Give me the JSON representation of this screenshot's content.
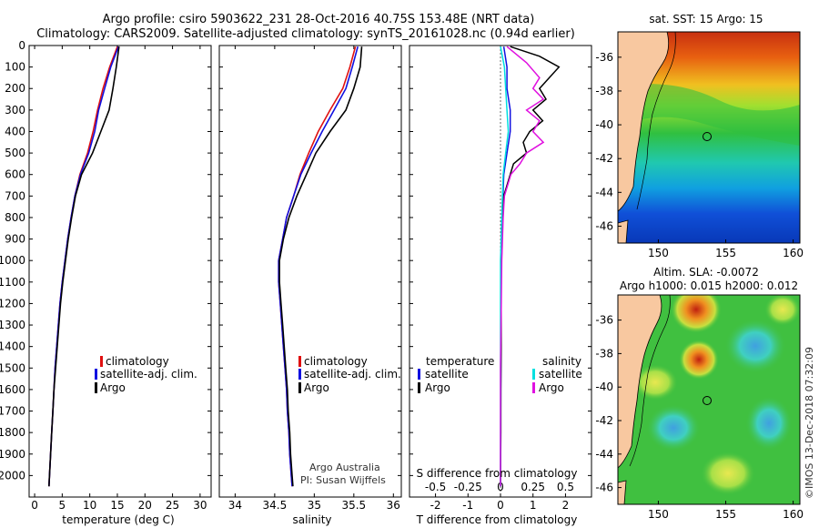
{
  "title_line1": "Argo profile: csiro 5903622_231 28-Oct-2016 40.75S 153.48E (NRT data)",
  "title_line2": "Climatology: CARS2009. Satellite-adjusted climatology: synTS_20161028.nc (0.94d earlier)",
  "colors": {
    "climatology": "#e01010",
    "satellite": "#1010e0",
    "argo": "#000000",
    "sal_satellite": "#00e0e0",
    "sal_argo": "#e010e0",
    "land": "#f8c8a0",
    "marker": "#000000"
  },
  "chart_data": [
    {
      "type": "line",
      "name": "temperature-profile",
      "xlabel": "temperature (deg C)",
      "ylabel": "",
      "xlim": [
        -1,
        32
      ],
      "ylim": [
        2100,
        0
      ],
      "xticks": [
        0,
        5,
        10,
        15,
        20,
        25,
        30
      ],
      "yticks": [
        0,
        100,
        200,
        300,
        400,
        500,
        600,
        700,
        800,
        900,
        1000,
        1100,
        1200,
        1300,
        1400,
        1500,
        1600,
        1700,
        1800,
        1900,
        2000
      ],
      "legend": [
        "climatology",
        "satellite-adj. clim.",
        "Argo"
      ],
      "series": [
        {
          "name": "climatology",
          "depth": [
            5,
            100,
            200,
            300,
            400,
            500,
            600,
            700,
            800,
            900,
            1000,
            1100,
            1200,
            1300,
            1400,
            1500,
            1600,
            1700,
            1800,
            1900,
            2000,
            2050
          ],
          "values": [
            15,
            13.6,
            12.4,
            11.4,
            10.6,
            9.6,
            8.2,
            7.3,
            6.6,
            6.0,
            5.5,
            5.0,
            4.6,
            4.3,
            4.0,
            3.7,
            3.5,
            3.3,
            3.1,
            2.9,
            2.7,
            2.6
          ]
        },
        {
          "name": "satellite-adj. clim.",
          "depth": [
            5,
            100,
            200,
            300,
            400,
            500,
            600,
            700,
            800,
            900,
            1000,
            1100,
            1200,
            1300,
            1400,
            1500,
            1600,
            1700,
            1800,
            1900,
            2000,
            2050
          ],
          "values": [
            15.2,
            13.8,
            12.7,
            11.6,
            10.9,
            9.8,
            8.3,
            7.3,
            6.6,
            6.0,
            5.5,
            5.0,
            4.6,
            4.3,
            4.0,
            3.7,
            3.5,
            3.3,
            3.1,
            2.9,
            2.7,
            2.6
          ]
        },
        {
          "name": "Argo",
          "depth": [
            5,
            100,
            200,
            300,
            400,
            500,
            600,
            700,
            800,
            900,
            1000,
            1100,
            1200,
            1300,
            1400,
            1500,
            1600,
            1700,
            1800,
            1900,
            2000,
            2050
          ],
          "values": [
            15.3,
            14.8,
            14.2,
            13.5,
            12.0,
            10.5,
            8.5,
            7.4,
            6.7,
            6.1,
            5.6,
            5.1,
            4.7,
            4.4,
            4.1,
            3.8,
            3.5,
            3.3,
            3.1,
            2.9,
            2.7,
            2.6
          ]
        }
      ]
    },
    {
      "type": "line",
      "name": "salinity-profile",
      "xlabel": "salinity",
      "xlim": [
        33.8,
        36.1
      ],
      "ylim": [
        2100,
        0
      ],
      "xticks": [
        34,
        34.5,
        35,
        35.5,
        36
      ],
      "legend": [
        "climatology",
        "satellite-adj. clim.",
        "Argo"
      ],
      "series": [
        {
          "name": "climatology",
          "depth": [
            5,
            100,
            200,
            300,
            400,
            500,
            600,
            700,
            800,
            900,
            1000,
            1100,
            1200,
            1300,
            1400,
            1500,
            1600,
            1700,
            1800,
            1900,
            2000,
            2050
          ],
          "values": [
            35.52,
            35.45,
            35.36,
            35.2,
            35.05,
            34.93,
            34.82,
            34.74,
            34.65,
            34.6,
            34.55,
            34.55,
            34.57,
            34.59,
            34.61,
            34.63,
            34.65,
            34.66,
            34.68,
            34.69,
            34.71,
            34.72
          ]
        },
        {
          "name": "satellite-adj. clim.",
          "depth": [
            5,
            100,
            200,
            300,
            400,
            500,
            600,
            700,
            800,
            900,
            1000,
            1100,
            1200,
            1300,
            1400,
            1500,
            1600,
            1700,
            1800,
            1900,
            2000,
            2050
          ],
          "values": [
            35.55,
            35.48,
            35.4,
            35.25,
            35.1,
            34.96,
            34.83,
            34.74,
            34.65,
            34.6,
            34.55,
            34.55,
            34.57,
            34.59,
            34.61,
            34.63,
            34.65,
            34.66,
            34.68,
            34.69,
            34.71,
            34.72
          ]
        },
        {
          "name": "Argo",
          "depth": [
            5,
            100,
            200,
            300,
            400,
            500,
            600,
            700,
            800,
            900,
            1000,
            1100,
            1200,
            1300,
            1400,
            1500,
            1600,
            1700,
            1800,
            1900,
            2000,
            2050
          ],
          "values": [
            35.6,
            35.58,
            35.5,
            35.4,
            35.2,
            35.02,
            34.9,
            34.78,
            34.68,
            34.61,
            34.56,
            34.56,
            34.58,
            34.6,
            34.62,
            34.64,
            34.66,
            34.67,
            34.69,
            34.7,
            34.72,
            34.73
          ]
        }
      ]
    },
    {
      "type": "line",
      "name": "difference-profile",
      "xlabel": "T difference from climatology",
      "xlabel_top": "S difference from climatology",
      "xlim": [
        -2.8,
        2.8
      ],
      "ylim": [
        2100,
        0
      ],
      "xticks": [
        -2,
        -1,
        0,
        1,
        2
      ],
      "xticks_top": [
        -0.5,
        -0.25,
        0,
        0.25,
        0.5
      ],
      "xticks_top_labels": [
        "-0.5",
        "-0.25",
        "0",
        "0.25",
        "0.5"
      ],
      "legend_left_title": "temperature",
      "legend_right_title": "salinity",
      "legend_left": [
        "satellite",
        "Argo"
      ],
      "legend_right": [
        "satellite",
        "Argo"
      ],
      "series": [
        {
          "name": "T satellite",
          "depth": [
            5,
            100,
            200,
            300,
            400,
            500,
            600,
            800,
            1000,
            1500,
            2050
          ],
          "values": [
            0.1,
            0.2,
            0.2,
            0.3,
            0.3,
            0.2,
            0.1,
            0.05,
            0.02,
            0.01,
            0.0
          ]
        },
        {
          "name": "T Argo",
          "depth": [
            5,
            50,
            100,
            150,
            200,
            250,
            300,
            350,
            400,
            450,
            500,
            550,
            600,
            700,
            800,
            900,
            1000,
            1100,
            1200,
            1400,
            1600,
            1800,
            2050
          ],
          "values": [
            0.3,
            1.2,
            1.8,
            1.5,
            1.2,
            1.4,
            1.0,
            1.3,
            0.9,
            0.7,
            0.8,
            0.4,
            0.3,
            0.1,
            0.05,
            0.05,
            0.03,
            0.02,
            0.02,
            0.02,
            0.01,
            0.01,
            0.0
          ]
        },
        {
          "name": "S satellite",
          "depth": [
            5,
            100,
            200,
            300,
            400,
            500,
            600,
            800,
            1000,
            1500,
            2050
          ],
          "values": [
            0.0,
            0.03,
            0.04,
            0.05,
            0.06,
            0.04,
            0.02,
            0.01,
            0.0,
            0.0,
            0.0
          ]
        },
        {
          "name": "S Argo",
          "depth": [
            5,
            80,
            150,
            200,
            250,
            300,
            350,
            400,
            450,
            500,
            550,
            600,
            700,
            800,
            1000,
            1500,
            2050
          ],
          "values": [
            0.05,
            0.2,
            0.3,
            0.25,
            0.33,
            0.2,
            0.3,
            0.25,
            0.33,
            0.2,
            0.15,
            0.08,
            0.03,
            0.02,
            0.01,
            0.0,
            0.0
          ]
        }
      ]
    },
    {
      "type": "heatmap",
      "name": "sst-map",
      "title": "sat. SST: 15 Argo: 15",
      "xlim": [
        147,
        160.5
      ],
      "ylim": [
        -47,
        -34.5
      ],
      "xticks": [
        150,
        155,
        160
      ],
      "yticks": [
        -36,
        -38,
        -40,
        -42,
        -44,
        -46
      ],
      "marker": {
        "lon": 153.48,
        "lat": -40.75
      }
    },
    {
      "type": "heatmap",
      "name": "sla-map",
      "title": "Altim. SLA: -0.0072",
      "subtitle": "Argo h1000: 0.015 h2000: 0.012",
      "xlim": [
        147,
        160.5
      ],
      "ylim": [
        -47,
        -34.5
      ],
      "xticks": [
        150,
        155,
        160
      ],
      "yticks": [
        -36,
        -38,
        -40,
        -42,
        -44,
        -46
      ],
      "marker": {
        "lon": 153.48,
        "lat": -40.75
      }
    }
  ],
  "credit_line1": "Argo Australia",
  "credit_line2": "PI: Susan Wijffels",
  "stamp": "©IMOS 13-Dec-2018 07:32:09"
}
